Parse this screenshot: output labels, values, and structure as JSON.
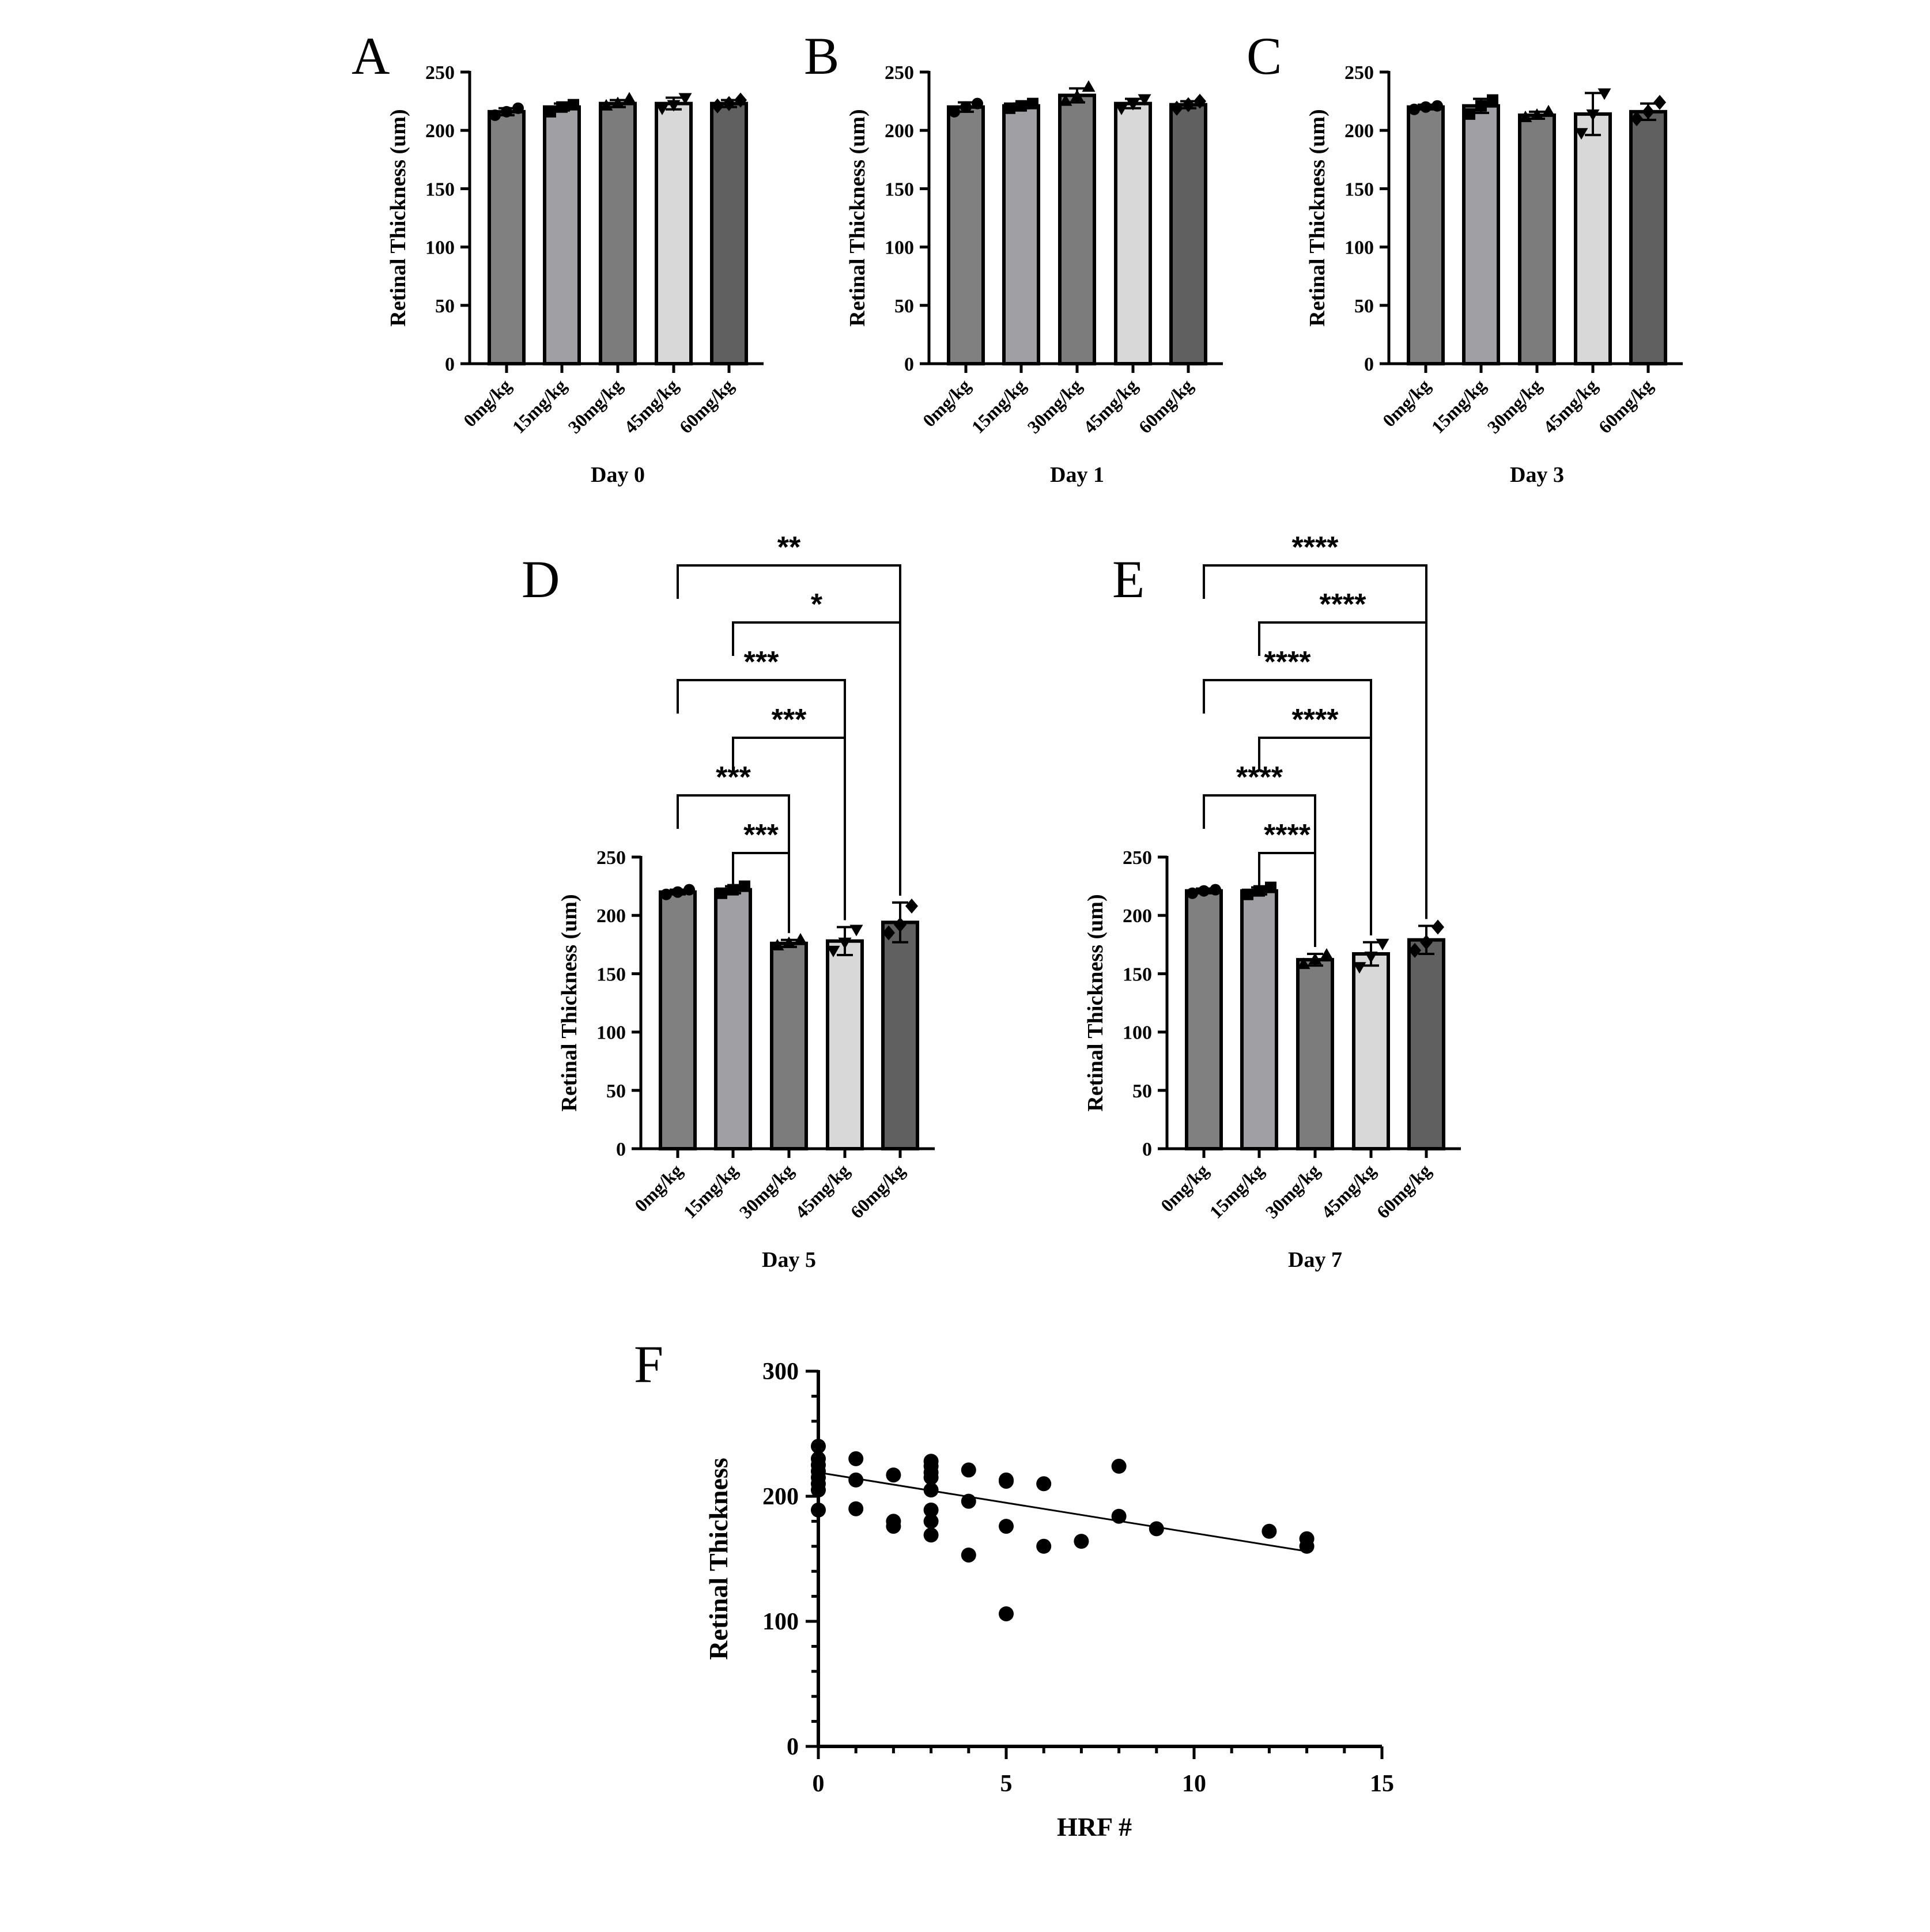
{
  "figure": {
    "y_axis_label": "Retinal Thickness (um)",
    "categories": [
      "0mg/kg",
      "15mg/kg",
      "30mg/kg",
      "45mg/kg",
      "60mg/kg"
    ],
    "bar_colors": [
      "#808080",
      "#a0a0a4",
      "#7c7c7c",
      "#d8d8d8",
      "#606060"
    ],
    "markers": [
      "circle",
      "square",
      "triangle-up",
      "triangle-down",
      "diamond"
    ]
  },
  "chart_data": [
    {
      "type": "bar",
      "panel": "A",
      "xlabel": "Day 0",
      "ylabel": "Retinal Thickness (um)",
      "ylim": [
        0,
        250
      ],
      "yticks": [
        0,
        50,
        100,
        150,
        200,
        250
      ],
      "categories": [
        "0mg/kg",
        "15mg/kg",
        "30mg/kg",
        "45mg/kg",
        "60mg/kg"
      ],
      "values": [
        216,
        220,
        223,
        223,
        223
      ],
      "error": [
        3,
        3,
        3,
        5,
        3
      ],
      "points": [
        [
          213,
          216,
          219
        ],
        [
          216,
          220,
          222
        ],
        [
          221,
          223,
          227
        ],
        [
          219,
          222,
          228
        ],
        [
          221,
          223,
          226
        ]
      ],
      "comparisons": []
    },
    {
      "type": "bar",
      "panel": "B",
      "xlabel": "Day 1",
      "ylabel": "Retinal Thickness (um)",
      "ylim": [
        0,
        250
      ],
      "yticks": [
        0,
        50,
        100,
        150,
        200,
        250
      ],
      "categories": [
        "0mg/kg",
        "15mg/kg",
        "30mg/kg",
        "45mg/kg",
        "60mg/kg"
      ],
      "values": [
        220,
        221,
        230,
        223,
        222
      ],
      "error": [
        4,
        2,
        6,
        4,
        3
      ],
      "points": [
        [
          216,
          220,
          223
        ],
        [
          219,
          221,
          223
        ],
        [
          225,
          229,
          237
        ],
        [
          219,
          223,
          227
        ],
        [
          219,
          222,
          225
        ]
      ],
      "comparisons": []
    },
    {
      "type": "bar",
      "panel": "C",
      "xlabel": "Day 3",
      "ylabel": "Retinal Thickness (um)",
      "ylim": [
        0,
        250
      ],
      "yticks": [
        0,
        50,
        100,
        150,
        200,
        250
      ],
      "categories": [
        "0mg/kg",
        "15mg/kg",
        "30mg/kg",
        "45mg/kg",
        "60mg/kg"
      ],
      "values": [
        220,
        221,
        213,
        214,
        216
      ],
      "error": [
        2,
        6,
        3,
        18,
        7
      ],
      "points": [
        [
          218,
          220,
          221
        ],
        [
          214,
          221,
          226
        ],
        [
          211,
          213,
          216
        ],
        [
          198,
          214,
          232
        ],
        [
          210,
          216,
          224
        ]
      ],
      "comparisons": []
    },
    {
      "type": "bar",
      "panel": "D",
      "xlabel": "Day 5",
      "ylabel": "Retinal Thickness (um)",
      "ylim": [
        0,
        250
      ],
      "yticks": [
        0,
        50,
        100,
        150,
        200,
        250
      ],
      "categories": [
        "0mg/kg",
        "15mg/kg",
        "30mg/kg",
        "45mg/kg",
        "60mg/kg"
      ],
      "values": [
        220,
        222,
        176,
        178,
        194
      ],
      "error": [
        2,
        3,
        3,
        12,
        17
      ],
      "points": [
        [
          218,
          220,
          222
        ],
        [
          219,
          222,
          225
        ],
        [
          174,
          176,
          179
        ],
        [
          170,
          177,
          188
        ],
        [
          185,
          192,
          208
        ]
      ],
      "comparisons": [
        {
          "from": 0,
          "to": 4,
          "label": "**"
        },
        {
          "from": 1,
          "to": 4,
          "label": "*"
        },
        {
          "from": 0,
          "to": 3,
          "label": "***"
        },
        {
          "from": 1,
          "to": 3,
          "label": "***"
        },
        {
          "from": 0,
          "to": 2,
          "label": "***"
        },
        {
          "from": 1,
          "to": 2,
          "label": "***"
        }
      ]
    },
    {
      "type": "bar",
      "panel": "E",
      "xlabel": "Day 7",
      "ylabel": "Retinal Thickness (um)",
      "ylim": [
        0,
        250
      ],
      "yticks": [
        0,
        50,
        100,
        150,
        200,
        250
      ],
      "categories": [
        "0mg/kg",
        "15mg/kg",
        "30mg/kg",
        "45mg/kg",
        "60mg/kg"
      ],
      "values": [
        221,
        221,
        162,
        167,
        179
      ],
      "error": [
        2,
        3,
        5,
        10,
        12
      ],
      "points": [
        [
          219,
          221,
          222
        ],
        [
          218,
          221,
          224
        ],
        [
          158,
          162,
          166
        ],
        [
          156,
          165,
          176
        ],
        [
          170,
          177,
          190
        ]
      ],
      "comparisons": [
        {
          "from": 0,
          "to": 4,
          "label": "****"
        },
        {
          "from": 1,
          "to": 4,
          "label": "****"
        },
        {
          "from": 0,
          "to": 3,
          "label": "****"
        },
        {
          "from": 1,
          "to": 3,
          "label": "****"
        },
        {
          "from": 0,
          "to": 2,
          "label": "****"
        },
        {
          "from": 1,
          "to": 2,
          "label": "****"
        }
      ]
    },
    {
      "type": "scatter",
      "panel": "F",
      "xlabel": "HRF #",
      "ylabel": "Retinal Thickness",
      "xlim": [
        0,
        15
      ],
      "ylim": [
        0,
        300
      ],
      "xticks": [
        0,
        5,
        10,
        15
      ],
      "yticks": [
        0,
        100,
        200,
        300
      ],
      "x": [
        0,
        0,
        0,
        0,
        0,
        0,
        0,
        0,
        1,
        1,
        1,
        2,
        2,
        2,
        3,
        3,
        3,
        3,
        3,
        3,
        3,
        3,
        4,
        4,
        4,
        5,
        5,
        5,
        5,
        6,
        6,
        7,
        8,
        8,
        9,
        12,
        13,
        13
      ],
      "y": [
        240,
        230,
        225,
        220,
        215,
        210,
        205,
        189,
        230,
        213,
        190,
        217,
        180,
        176,
        228,
        224,
        219,
        215,
        205,
        189,
        180,
        169,
        221,
        196,
        153,
        213,
        212,
        176,
        106,
        210,
        160,
        164,
        224,
        184,
        174,
        172,
        166,
        160
      ],
      "fit_line": {
        "x": [
          0,
          13
        ],
        "y": [
          219,
          156
        ]
      }
    }
  ]
}
